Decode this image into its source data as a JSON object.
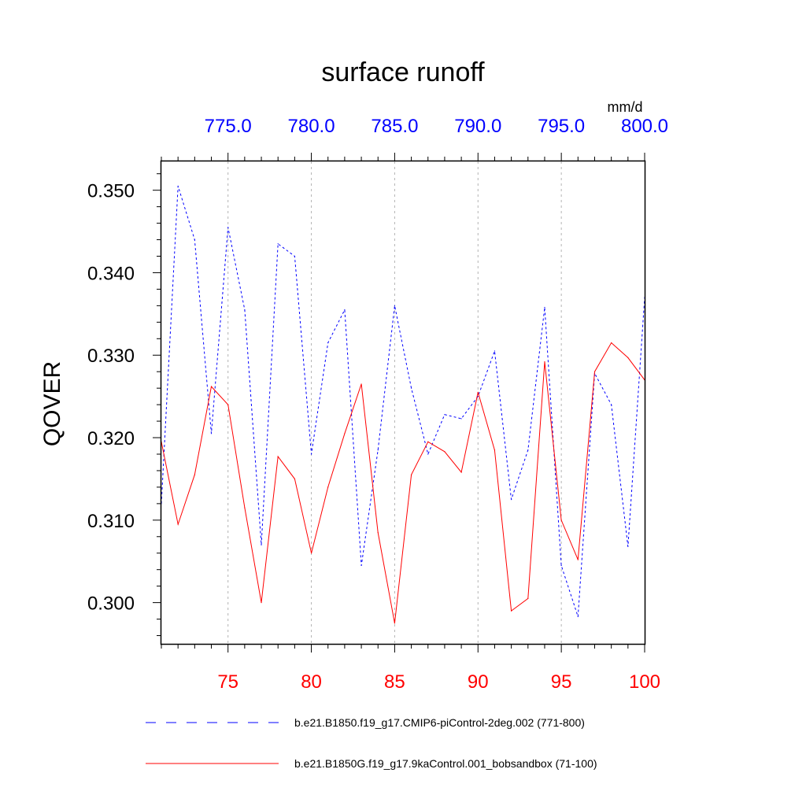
{
  "chart_data": {
    "type": "line",
    "title": "surface runoff",
    "units": "mm/d",
    "ylabel": "QOVER",
    "ylim": [
      0.295,
      0.3535
    ],
    "yticks": [
      0.3,
      0.31,
      0.32,
      0.33,
      0.34,
      0.35
    ],
    "bottom_axis": {
      "range": [
        71,
        100
      ],
      "ticks": [
        75,
        80,
        85,
        90,
        95,
        100
      ],
      "color": "#ff0000"
    },
    "top_axis": {
      "range": [
        771,
        800
      ],
      "ticks": [
        775.0,
        780.0,
        785.0,
        790.0,
        795.0,
        800.0
      ],
      "color": "#0000ff"
    },
    "grid": "vertical dotted at major ticks",
    "legend_position": "bottom",
    "series": [
      {
        "name": "b.e21.B1850.f19_g17.CMIP6-piControl-2deg.002 (771-800)",
        "color": "#0000ff",
        "style": "dashed",
        "axis": "top",
        "x": [
          771,
          772,
          773,
          774,
          775,
          776,
          777,
          778,
          779,
          780,
          781,
          782,
          783,
          784,
          785,
          786,
          787,
          788,
          789,
          790,
          791,
          792,
          793,
          794,
          795,
          796,
          797,
          798,
          799,
          800
        ],
        "values": [
          0.312,
          0.3505,
          0.344,
          0.3205,
          0.3455,
          0.3355,
          0.307,
          0.3435,
          0.342,
          0.318,
          0.3315,
          0.3355,
          0.3045,
          0.3185,
          0.336,
          0.326,
          0.318,
          0.3228,
          0.3223,
          0.325,
          0.3305,
          0.3125,
          0.3185,
          0.3358,
          0.3045,
          0.2983,
          0.3278,
          0.324,
          0.3068,
          0.337
        ]
      },
      {
        "name": "b.e21.B1850G.f19_g17.9kaControl.001_bobsandbox (71-100)",
        "color": "#ff0000",
        "style": "solid",
        "axis": "bottom",
        "x": [
          71,
          72,
          73,
          74,
          75,
          76,
          77,
          78,
          79,
          80,
          81,
          82,
          83,
          84,
          85,
          86,
          87,
          88,
          89,
          90,
          91,
          92,
          93,
          94,
          95,
          96,
          97,
          98,
          99,
          100
        ],
        "values": [
          0.3195,
          0.3095,
          0.3155,
          0.3262,
          0.324,
          0.3115,
          0.3,
          0.3177,
          0.315,
          0.306,
          0.314,
          0.3205,
          0.3265,
          0.3085,
          0.2975,
          0.3155,
          0.3195,
          0.3183,
          0.3158,
          0.3255,
          0.3185,
          0.299,
          0.3005,
          0.3292,
          0.31,
          0.3052,
          0.328,
          0.3315,
          0.3297,
          0.327
        ]
      }
    ]
  }
}
